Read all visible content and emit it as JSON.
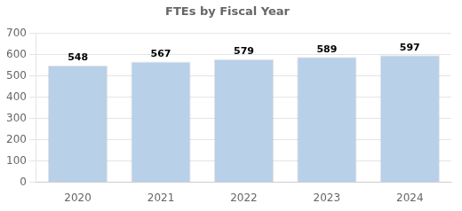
{
  "chart_data": {
    "type": "bar",
    "title": "FTEs by Fiscal Year",
    "categories": [
      "2020",
      "2021",
      "2022",
      "2023",
      "2024"
    ],
    "values": [
      548,
      567,
      579,
      589,
      597
    ],
    "color": "#b8d0e8",
    "ylim": [
      0,
      700
    ],
    "yticks": [
      0,
      100,
      200,
      300,
      400,
      500,
      600,
      700
    ],
    "grid": true,
    "data_labels": true
  }
}
